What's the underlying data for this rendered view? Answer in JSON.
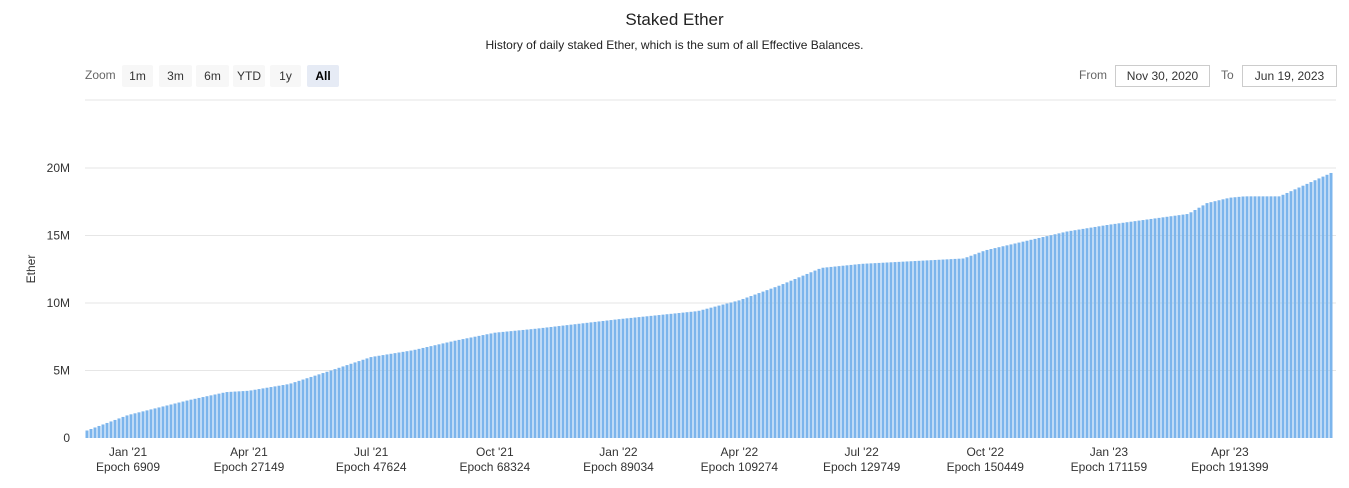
{
  "header": {
    "title": "Staked Ether",
    "subtitle": "History of daily staked Ether, which is the sum of all Effective Balances."
  },
  "zoom": {
    "label": "Zoom",
    "buttons": [
      "1m",
      "3m",
      "6m",
      "YTD",
      "1y",
      "All"
    ],
    "selected": "All"
  },
  "range": {
    "from_label": "From",
    "from_value": "Nov 30, 2020",
    "to_label": "To",
    "to_value": "Jun 19, 2023"
  },
  "colors": {
    "bar": "#7cb5ec",
    "grid": "#e6e6e6",
    "selected_zoom_bg": "#e6ebf5"
  },
  "chart_data": {
    "type": "bar",
    "ylabel": "Ether",
    "ylim": [
      0,
      20000000
    ],
    "y_ticks": [
      "0",
      "5M",
      "10M",
      "15M",
      "20M"
    ],
    "y_tick_values": [
      0,
      5000000,
      10000000,
      15000000,
      20000000
    ],
    "x_ticks": [
      {
        "label": "Jan '21",
        "epoch": "Epoch 6909",
        "date": "2021-01-01"
      },
      {
        "label": "Apr '21",
        "epoch": "Epoch 27149",
        "date": "2021-04-01"
      },
      {
        "label": "Jul '21",
        "epoch": "Epoch 47624",
        "date": "2021-07-01"
      },
      {
        "label": "Oct '21",
        "epoch": "Epoch 68324",
        "date": "2021-10-01"
      },
      {
        "label": "Jan '22",
        "epoch": "Epoch 89034",
        "date": "2022-01-01"
      },
      {
        "label": "Apr '22",
        "epoch": "Epoch 109274",
        "date": "2022-04-01"
      },
      {
        "label": "Jul '22",
        "epoch": "Epoch 129749",
        "date": "2022-07-01"
      },
      {
        "label": "Oct '22",
        "epoch": "Epoch 150449",
        "date": "2022-10-01"
      },
      {
        "label": "Jan '23",
        "epoch": "Epoch 171159",
        "date": "2023-01-01"
      },
      {
        "label": "Apr '23",
        "epoch": "Epoch 191399",
        "date": "2023-04-01"
      }
    ],
    "x_range": [
      "2020-11-30",
      "2023-06-19"
    ],
    "series": [
      {
        "values_anchor": [
          {
            "date": "2020-11-30",
            "value": 500000
          },
          {
            "date": "2021-01-01",
            "value": 1700000
          },
          {
            "date": "2021-02-15",
            "value": 2800000
          },
          {
            "date": "2021-03-15",
            "value": 3400000
          },
          {
            "date": "2021-04-01",
            "value": 3500000
          },
          {
            "date": "2021-05-01",
            "value": 4000000
          },
          {
            "date": "2021-06-01",
            "value": 5000000
          },
          {
            "date": "2021-07-01",
            "value": 6000000
          },
          {
            "date": "2021-08-01",
            "value": 6500000
          },
          {
            "date": "2021-09-01",
            "value": 7200000
          },
          {
            "date": "2021-10-01",
            "value": 7800000
          },
          {
            "date": "2021-11-01",
            "value": 8100000
          },
          {
            "date": "2022-01-01",
            "value": 8800000
          },
          {
            "date": "2022-03-01",
            "value": 9400000
          },
          {
            "date": "2022-04-01",
            "value": 10200000
          },
          {
            "date": "2022-05-01",
            "value": 11300000
          },
          {
            "date": "2022-06-01",
            "value": 12600000
          },
          {
            "date": "2022-07-01",
            "value": 12900000
          },
          {
            "date": "2022-09-15",
            "value": 13300000
          },
          {
            "date": "2022-10-01",
            "value": 13900000
          },
          {
            "date": "2022-12-01",
            "value": 15300000
          },
          {
            "date": "2023-01-01",
            "value": 15800000
          },
          {
            "date": "2023-03-01",
            "value": 16600000
          },
          {
            "date": "2023-03-15",
            "value": 17400000
          },
          {
            "date": "2023-04-01",
            "value": 17800000
          },
          {
            "date": "2023-04-12",
            "value": 17900000
          },
          {
            "date": "2023-05-08",
            "value": 17900000
          },
          {
            "date": "2023-06-19",
            "value": 19800000
          }
        ]
      }
    ]
  }
}
